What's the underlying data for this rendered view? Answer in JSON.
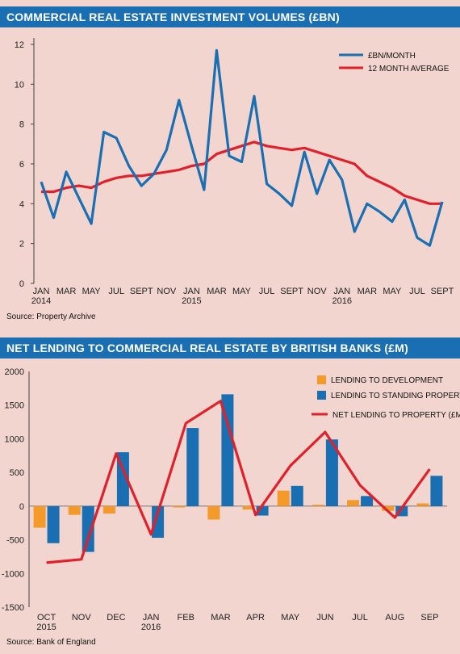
{
  "colors": {
    "header_bg": "#1a6fb3",
    "series_blue": "#1a6fb3",
    "series_red": "#e0202a",
    "development_orange": "#f39a2a",
    "background": "#f2d5cf"
  },
  "chart1": {
    "title": "COMMERCIAL REAL ESTATE INVESTMENT VOLUMES (£BN)",
    "source": "Source: Property Archive",
    "legend": {
      "monthly": "£BN/MONTH",
      "average": "12 MONTH AVERAGE"
    },
    "yticks": [
      "0",
      "2",
      "4",
      "6",
      "8",
      "10",
      "12"
    ],
    "xticks": [
      "JAN",
      "MAR",
      "MAY",
      "JUL",
      "SEPT",
      "NOV",
      "JAN",
      "MAR",
      "MAY",
      "JUL",
      "SEPT",
      "NOV",
      "JAN",
      "MAR",
      "MAY",
      "JUL",
      "SEPT"
    ],
    "year_labels": [
      "2014",
      "2015",
      "2016"
    ]
  },
  "chart2": {
    "title": "NET LENDING TO COMMERCIAL REAL ESTATE BY BRITISH BANKS (£M)",
    "source": "Source: Bank of England",
    "legend": {
      "development": "LENDING TO DEVELOPMENT",
      "standing": "LENDING TO STANDING PROPERTY",
      "net": "NET LENDING TO PROPERTY (£M)"
    },
    "yticks": [
      "-1500",
      "-1000",
      "-500",
      "0",
      "500",
      "1000",
      "1500",
      "2000"
    ],
    "xticks": [
      "OCT",
      "NOV",
      "DEC",
      "JAN",
      "FEB",
      "MAR",
      "APR",
      "MAY",
      "JUN",
      "JUL",
      "AUG",
      "SEP"
    ],
    "year_labels": [
      "2015",
      "2016"
    ]
  },
  "chart_data": [
    {
      "type": "line",
      "title": "COMMERCIAL REAL ESTATE INVESTMENT VOLUMES (£BN)",
      "xlabel": "",
      "ylabel": "",
      "ylim": [
        0,
        12
      ],
      "x": [
        "Jan 2014",
        "Feb 2014",
        "Mar 2014",
        "Apr 2014",
        "May 2014",
        "Jun 2014",
        "Jul 2014",
        "Aug 2014",
        "Sept 2014",
        "Oct 2014",
        "Nov 2014",
        "Dec 2014",
        "Jan 2015",
        "Feb 2015",
        "Mar 2015",
        "Apr 2015",
        "May 2015",
        "Jun 2015",
        "Jul 2015",
        "Aug 2015",
        "Sept 2015",
        "Oct 2015",
        "Nov 2015",
        "Dec 2015",
        "Jan 2016",
        "Feb 2016",
        "Mar 2016",
        "Apr 2016",
        "May 2016",
        "Jun 2016",
        "Jul 2016",
        "Aug 2016",
        "Sept 2016"
      ],
      "series": [
        {
          "name": "£BN/MONTH",
          "color": "#1a6fb3",
          "values": [
            5.1,
            3.3,
            5.6,
            4.3,
            3.0,
            7.6,
            7.3,
            5.9,
            4.9,
            5.5,
            6.7,
            9.2,
            6.9,
            4.7,
            11.7,
            6.4,
            6.1,
            9.4,
            5.0,
            4.5,
            3.9,
            6.6,
            4.5,
            6.2,
            5.2,
            2.6,
            4.0,
            3.6,
            3.1,
            4.2,
            2.3,
            1.9,
            4.1
          ]
        },
        {
          "name": "12 MONTH AVERAGE",
          "color": "#e0202a",
          "values": [
            4.6,
            4.6,
            4.8,
            4.9,
            4.8,
            5.1,
            5.3,
            5.4,
            5.4,
            5.5,
            5.6,
            5.7,
            5.9,
            6.0,
            6.5,
            6.7,
            6.9,
            7.1,
            6.9,
            6.8,
            6.7,
            6.8,
            6.6,
            6.4,
            6.2,
            6.0,
            5.4,
            5.1,
            4.8,
            4.4,
            4.2,
            4.0,
            4.0
          ]
        }
      ],
      "legend_position": "top-right",
      "grid": false
    },
    {
      "type": "bar",
      "title": "NET LENDING TO COMMERCIAL REAL ESTATE BY BRITISH BANKS (£M)",
      "xlabel": "",
      "ylabel": "",
      "ylim": [
        -1500,
        2000
      ],
      "categories": [
        "OCT 2015",
        "NOV",
        "DEC",
        "JAN 2016",
        "FEB",
        "MAR",
        "APR",
        "MAY",
        "JUN",
        "JUL",
        "AUG",
        "SEP"
      ],
      "series": [
        {
          "name": "LENDING TO DEVELOPMENT",
          "color": "#f39a2a",
          "values": [
            -320,
            -130,
            -110,
            0,
            -20,
            -200,
            -50,
            230,
            20,
            90,
            -70,
            40
          ]
        },
        {
          "name": "LENDING TO STANDING PROPERTY",
          "color": "#1a6fb3",
          "values": [
            -550,
            -680,
            800,
            -470,
            1160,
            1660,
            -140,
            300,
            990,
            150,
            -150,
            450
          ]
        }
      ],
      "line": {
        "name": "NET LENDING TO PROPERTY (£M)",
        "color": "#e0202a",
        "values": [
          -840,
          -790,
          780,
          -420,
          1230,
          1560,
          -130,
          600,
          1100,
          310,
          -170,
          550
        ]
      },
      "legend_position": "top-right",
      "grid": false
    }
  ]
}
